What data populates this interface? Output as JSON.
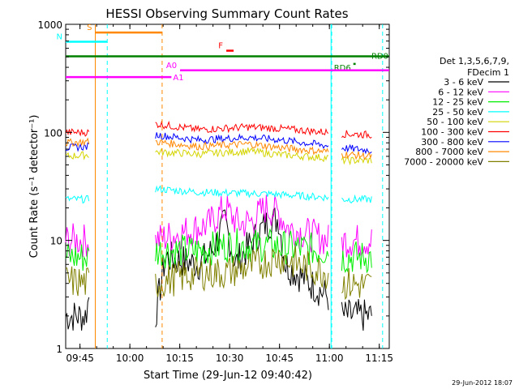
{
  "chart_data": {
    "type": "line",
    "title": "HESSI Observing Summary Count Rates",
    "ylabel": "Count Rate (s⁻¹ detector⁻¹)",
    "xlabel": "Start Time (29-Jun-12 09:40:42)",
    "y_scale": "log",
    "ylim": [
      1,
      1000
    ],
    "xlim_minutes": [
      0,
      97.3
    ],
    "x_ticks": [
      {
        "t": 4.3,
        "label": "09:45"
      },
      {
        "t": 19.3,
        "label": "10:00"
      },
      {
        "t": 34.3,
        "label": "10:15"
      },
      {
        "t": 49.3,
        "label": "10:30"
      },
      {
        "t": 64.3,
        "label": "10:45"
      },
      {
        "t": 79.3,
        "label": "11:00"
      },
      {
        "t": 94.3,
        "label": "11:15"
      }
    ],
    "y_ticks": [
      {
        "v": 1,
        "label": "1"
      },
      {
        "v": 10,
        "label": "10"
      },
      {
        "v": 100,
        "label": "100"
      },
      {
        "v": 1000,
        "label": "1000"
      }
    ],
    "legend_header": [
      "Det 1,3,5,6,7,9,",
      "FDecim 1"
    ],
    "series": [
      {
        "name": "3 - 6 keV",
        "color": "#000000",
        "segments": [
          [
            [
              0,
              2
            ],
            [
              6,
              2
            ],
            [
              7,
              3
            ]
          ],
          [
            [
              27,
              2
            ],
            [
              30,
              7
            ],
            [
              40,
              6
            ],
            [
              44,
              8
            ],
            [
              48,
              15
            ],
            [
              51,
              6
            ],
            [
              60,
              14
            ],
            [
              64,
              16
            ],
            [
              66,
              6
            ],
            [
              79,
              3
            ]
          ],
          [
            [
              83,
              2
            ],
            [
              92,
              2
            ]
          ]
        ]
      },
      {
        "name": "6 - 12 keV",
        "color": "#ff00ff",
        "segments": [
          [
            [
              0,
              10
            ],
            [
              7,
              10
            ]
          ],
          [
            [
              27,
              10
            ],
            [
              36,
              12
            ],
            [
              43,
              14
            ],
            [
              48,
              20
            ],
            [
              52,
              14
            ],
            [
              56,
              15
            ],
            [
              60,
              20
            ],
            [
              64,
              18
            ],
            [
              67,
              13
            ],
            [
              79,
              10
            ]
          ],
          [
            [
              83,
              10
            ],
            [
              92,
              10
            ]
          ]
        ]
      },
      {
        "name": "12 - 25 keV",
        "color": "#00ee00",
        "segments": [
          [
            [
              0,
              7
            ],
            [
              7,
              7
            ]
          ],
          [
            [
              27,
              8
            ],
            [
              40,
              8
            ],
            [
              48,
              9
            ],
            [
              60,
              9
            ],
            [
              79,
              8
            ]
          ],
          [
            [
              83,
              7
            ],
            [
              92,
              7
            ]
          ]
        ]
      },
      {
        "name": "25 - 50 keV",
        "color": "#00ffff",
        "segments": [
          [
            [
              0,
              24
            ],
            [
              7,
              24
            ]
          ],
          [
            [
              27,
              30
            ],
            [
              40,
              28
            ],
            [
              60,
              27
            ],
            [
              79,
              25
            ]
          ],
          [
            [
              83,
              24
            ],
            [
              92,
              24
            ]
          ]
        ]
      },
      {
        "name": "50 - 100 keV",
        "color": "#d4d400",
        "segments": [
          [
            [
              0,
              60
            ],
            [
              7,
              62
            ]
          ],
          [
            [
              27,
              66
            ],
            [
              40,
              63
            ],
            [
              55,
              67
            ],
            [
              65,
              62
            ],
            [
              79,
              58
            ]
          ],
          [
            [
              83,
              55
            ],
            [
              92,
              55
            ]
          ]
        ]
      },
      {
        "name": "100 - 300 keV",
        "color": "#ff0000",
        "segments": [
          [
            [
              0,
              100
            ],
            [
              7,
              100
            ]
          ],
          [
            [
              27,
              120
            ],
            [
              40,
              106
            ],
            [
              55,
              112
            ],
            [
              65,
              108
            ],
            [
              79,
              100
            ]
          ],
          [
            [
              83,
              97
            ],
            [
              92,
              95
            ]
          ]
        ]
      },
      {
        "name": "300 - 800 keV",
        "color": "#0000ff",
        "segments": [
          [
            [
              0,
              72
            ],
            [
              7,
              74
            ]
          ],
          [
            [
              27,
              95
            ],
            [
              40,
              85
            ],
            [
              55,
              90
            ],
            [
              65,
              85
            ],
            [
              79,
              75
            ]
          ],
          [
            [
              83,
              72
            ],
            [
              92,
              68
            ]
          ]
        ]
      },
      {
        "name": "800 - 7000 keV",
        "color": "#ff8800",
        "segments": [
          [
            [
              0,
              80
            ],
            [
              7,
              82
            ]
          ],
          [
            [
              27,
              82
            ],
            [
              40,
              74
            ],
            [
              55,
              78
            ],
            [
              65,
              72
            ],
            [
              79,
              66
            ]
          ],
          [
            [
              83,
              63
            ],
            [
              92,
              60
            ]
          ]
        ]
      },
      {
        "name": "7000 - 20000 keV",
        "color": "#808000",
        "segments": [
          [
            [
              0,
              4.2
            ],
            [
              7,
              4
            ]
          ],
          [
            [
              27,
              4
            ],
            [
              40,
              5
            ],
            [
              48,
              5
            ],
            [
              58,
              6
            ],
            [
              64,
              7
            ],
            [
              70,
              6
            ],
            [
              79,
              5
            ]
          ],
          [
            [
              83,
              4
            ],
            [
              92,
              3.8
            ]
          ]
        ]
      }
    ],
    "flags": [
      {
        "label": "S",
        "color": "#ff8800",
        "t0": 8.9,
        "t1": 29,
        "y": 840
      },
      {
        "label": "N",
        "color": "#00ffff",
        "t0": 0,
        "t1": 12.5,
        "y": 690
      },
      {
        "label": "F",
        "color": "#ff0000",
        "t0": 48.3,
        "t1": 50.5,
        "y": 570
      },
      {
        "label": "RD0",
        "color": "#008000",
        "t0": 0,
        "t1": 97.3,
        "y": 505
      },
      {
        "label": "RD6",
        "color": "#008000",
        "t0": 86.5,
        "t1": 87.2,
        "y": 430
      },
      {
        "label": "A0",
        "color": "#ff00ff",
        "t0": 34.4,
        "t1": 97.3,
        "y": 375
      },
      {
        "label": "A1",
        "color": "#ff00ff",
        "t0": 0,
        "t1": 31.8,
        "y": 325
      }
    ],
    "solid_verticals": [
      {
        "t": 8.9,
        "color": "#ff8800"
      },
      {
        "t": 79.8,
        "color": "#00ffff"
      }
    ],
    "dashed_verticals": [
      {
        "t": 12.5,
        "color": "#00ffff"
      },
      {
        "t": 29.0,
        "color": "#ff8800"
      },
      {
        "t": 80.0,
        "color": "#00ffff"
      },
      {
        "t": 95.3,
        "color": "#00ffff"
      }
    ]
  },
  "footer_date": "29-Jun-2012 18:07"
}
